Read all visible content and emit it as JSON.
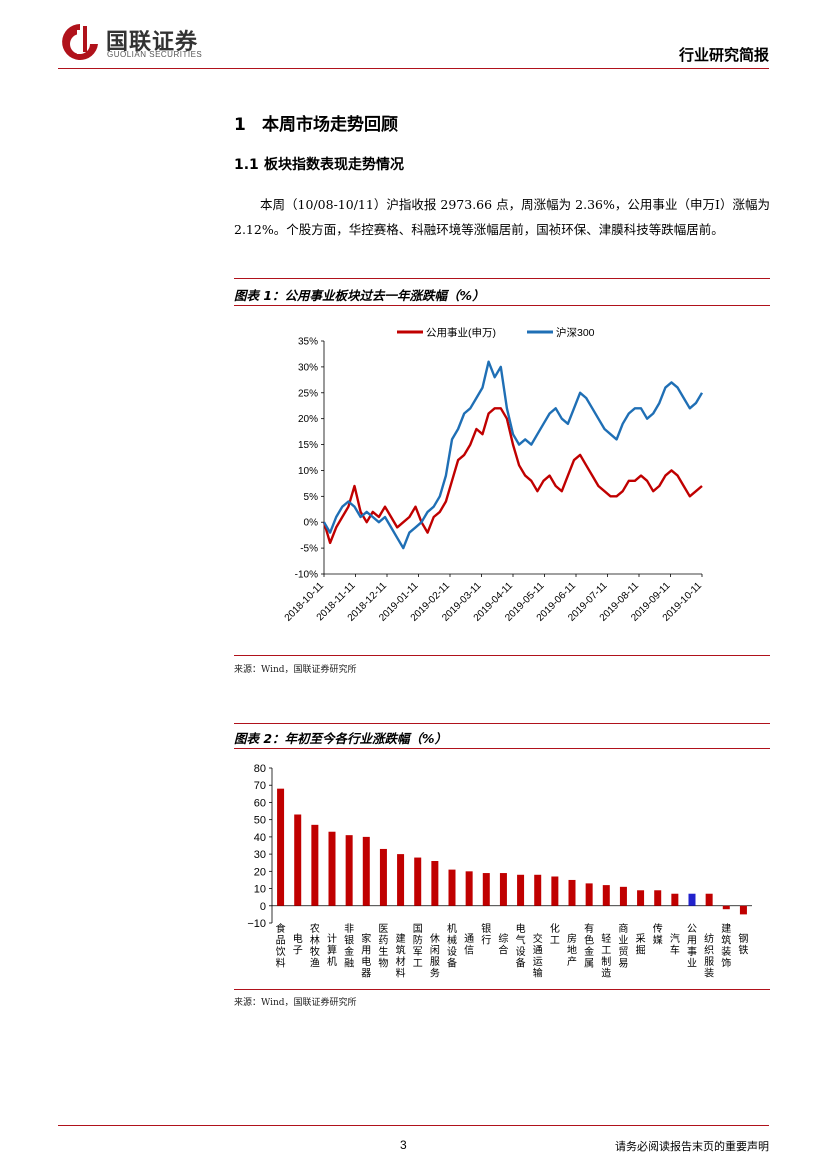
{
  "header": {
    "logo_cn": "国联证券",
    "logo_en": "GUOLIAN SECURITIES",
    "report_type": "行业研究简报",
    "brand_color": "#b0121b"
  },
  "section1": {
    "number": "1",
    "title": "本周市场走势回顾"
  },
  "section1_1": {
    "number": "1.1",
    "title": "板块指数表现走势情况"
  },
  "paragraph": "本周（10/08-10/11）沪指收报 2973.66 点，周涨幅为 2.36%，公用事业（申万I）涨幅为 2.12%。个股方面，华控赛格、科融环境等涨幅居前，国祯环保、津膜科技等跌幅居前。",
  "figure1": {
    "title": "图表 1：公用事业板块过去一年涨跌幅（%）",
    "source": "来源：Wind，国联证券研究所"
  },
  "figure2": {
    "title": "图表 2：年初至今各行业涨跌幅（%）",
    "source": "来源：Wind，国联证券研究所"
  },
  "footer": {
    "page": "3",
    "note": "请务必阅读报告末页的重要声明"
  },
  "chart_data": [
    {
      "type": "line",
      "x_ticks": [
        "2018-10-11",
        "2018-11-11",
        "2018-12-11",
        "2019-01-11",
        "2019-02-11",
        "2019-03-11",
        "2019-04-11",
        "2019-05-11",
        "2019-06-11",
        "2019-07-11",
        "2019-08-11",
        "2019-09-11",
        "2019-10-11"
      ],
      "y_ticks": [
        "35%",
        "30%",
        "25%",
        "20%",
        "15%",
        "10%",
        "5%",
        "0%",
        "-5%",
        "-10%"
      ],
      "ylim": [
        -10,
        35
      ],
      "grid": false,
      "legend_position": "top",
      "series": [
        {
          "name": "公用事业(申万)",
          "color": "#c00000",
          "values": [
            0,
            -4,
            -1,
            1,
            3,
            7,
            2,
            0,
            2,
            1,
            3,
            1,
            -1,
            0,
            1,
            3,
            0,
            -2,
            1,
            2,
            4,
            8,
            12,
            13,
            15,
            18,
            17,
            21,
            22,
            22,
            20,
            15,
            11,
            9,
            8,
            6,
            8,
            9,
            7,
            6,
            9,
            12,
            13,
            11,
            9,
            7,
            6,
            5,
            5,
            6,
            8,
            8,
            9,
            8,
            6,
            7,
            9,
            10,
            9,
            7,
            5,
            6,
            7
          ]
        },
        {
          "name": "沪深300",
          "color": "#1f6fb5",
          "values": [
            0,
            -2,
            1,
            3,
            4,
            3,
            1,
            2,
            1,
            0,
            1,
            -1,
            -3,
            -5,
            -2,
            -1,
            0,
            2,
            3,
            5,
            9,
            16,
            18,
            21,
            22,
            24,
            26,
            31,
            28,
            30,
            22,
            17,
            15,
            16,
            15,
            17,
            19,
            21,
            22,
            20,
            19,
            22,
            25,
            24,
            22,
            20,
            18,
            17,
            16,
            19,
            21,
            22,
            22,
            20,
            21,
            23,
            26,
            27,
            26,
            24,
            22,
            23,
            25
          ]
        }
      ]
    },
    {
      "type": "bar",
      "ylim": [
        -10,
        80
      ],
      "y_ticks": [
        "80",
        "70",
        "60",
        "50",
        "40",
        "30",
        "20",
        "10",
        "0",
        "−10"
      ],
      "grid": false,
      "categories": [
        "食品饮料",
        "电子",
        "农林牧渔",
        "计算机",
        "非银金融",
        "家用电器",
        "医药生物",
        "建筑材料",
        "国防军工",
        "休闲服务",
        "机械设备",
        "通信",
        "银行",
        "综合",
        "电气设备",
        "交通运输",
        "化工",
        "房地产",
        "有色金属",
        "轻工制造",
        "商业贸易",
        "采掘",
        "传媒",
        "汽车",
        "公用事业",
        "纺织服装",
        "建筑装饰",
        "钢铁"
      ],
      "values": [
        68,
        53,
        47,
        43,
        41,
        40,
        33,
        30,
        28,
        26,
        21,
        20,
        19,
        19,
        18,
        18,
        17,
        15,
        13,
        12,
        11,
        9,
        9,
        7,
        7,
        7,
        -2,
        -5
      ],
      "bar_color": "#c00000",
      "highlight_category": "公用事业",
      "highlight_color": "#2222cc"
    }
  ]
}
